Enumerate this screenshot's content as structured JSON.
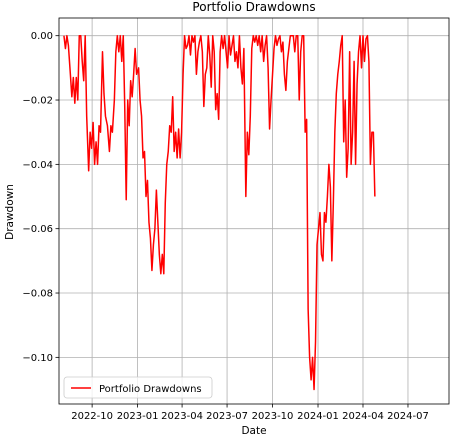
{
  "chart_data": {
    "type": "line",
    "title": "Portfolio Drawdowns",
    "xlabel": "Date",
    "ylabel": "Drawdown",
    "x_tick_labels": [
      "2022-10",
      "2023-01",
      "2023-04",
      "2023-07",
      "2023-10",
      "2024-01",
      "2024-04",
      "2024-07"
    ],
    "x_ticks": [
      "2022-10-01",
      "2023-01-01",
      "2023-04-01",
      "2023-07-01",
      "2023-10-01",
      "2024-01-01",
      "2024-04-01",
      "2024-07-01"
    ],
    "xlim": [
      "2022-07-26",
      "2024-09-22"
    ],
    "y_tick_labels": [
      "0.00",
      "−0.02",
      "−0.04",
      "−0.06",
      "−0.08",
      "−0.10"
    ],
    "y_ticks": [
      0,
      -0.02,
      -0.04,
      -0.06,
      -0.08,
      -0.1
    ],
    "ylim": [
      -0.1145,
      0.0055
    ],
    "grid": true,
    "legend": {
      "position": "lower-left",
      "entries": [
        "Portfolio Drawdowns"
      ]
    },
    "series": [
      {
        "name": "Portfolio Drawdowns",
        "color": "#ff0000",
        "points": [
          [
            "2022-08-05",
            0.0
          ],
          [
            "2022-08-08",
            -0.004
          ],
          [
            "2022-08-11",
            0.0
          ],
          [
            "2022-08-14",
            -0.003
          ],
          [
            "2022-08-18",
            -0.012
          ],
          [
            "2022-08-21",
            -0.019
          ],
          [
            "2022-08-24",
            -0.013
          ],
          [
            "2022-08-27",
            -0.021
          ],
          [
            "2022-08-30",
            -0.013
          ],
          [
            "2022-09-02",
            -0.02
          ],
          [
            "2022-09-05",
            0.0
          ],
          [
            "2022-09-08",
            0.0
          ],
          [
            "2022-09-11",
            -0.008
          ],
          [
            "2022-09-14",
            -0.014
          ],
          [
            "2022-09-17",
            0.0
          ],
          [
            "2022-09-20",
            -0.025
          ],
          [
            "2022-09-24",
            -0.042
          ],
          [
            "2022-09-27",
            -0.03
          ],
          [
            "2022-09-30",
            -0.035
          ],
          [
            "2022-10-03",
            -0.027
          ],
          [
            "2022-10-06",
            -0.04
          ],
          [
            "2022-10-09",
            -0.033
          ],
          [
            "2022-10-12",
            -0.04
          ],
          [
            "2022-10-15",
            -0.028
          ],
          [
            "2022-10-18",
            -0.03
          ],
          [
            "2022-10-22",
            -0.005
          ],
          [
            "2022-10-25",
            -0.018
          ],
          [
            "2022-10-28",
            -0.025
          ],
          [
            "2022-11-01",
            -0.028
          ],
          [
            "2022-11-05",
            -0.036
          ],
          [
            "2022-11-08",
            -0.028
          ],
          [
            "2022-11-11",
            -0.03
          ],
          [
            "2022-11-15",
            -0.02
          ],
          [
            "2022-11-18",
            -0.005
          ],
          [
            "2022-11-21",
            0.0
          ],
          [
            "2022-11-24",
            -0.005
          ],
          [
            "2022-11-27",
            0.0
          ],
          [
            "2022-11-30",
            -0.008
          ],
          [
            "2022-12-03",
            0.0
          ],
          [
            "2022-12-06",
            -0.022
          ],
          [
            "2022-12-09",
            -0.051
          ],
          [
            "2022-12-12",
            -0.02
          ],
          [
            "2022-12-15",
            -0.028
          ],
          [
            "2022-12-18",
            -0.014
          ],
          [
            "2022-12-21",
            -0.019
          ],
          [
            "2022-12-24",
            -0.012
          ],
          [
            "2022-12-27",
            -0.004
          ],
          [
            "2022-12-30",
            -0.012
          ],
          [
            "2023-01-03",
            -0.01
          ],
          [
            "2023-01-06",
            -0.02
          ],
          [
            "2023-01-09",
            -0.025
          ],
          [
            "2023-01-12",
            -0.038
          ],
          [
            "2023-01-15",
            -0.036
          ],
          [
            "2023-01-18",
            -0.05
          ],
          [
            "2023-01-21",
            -0.045
          ],
          [
            "2023-01-24",
            -0.058
          ],
          [
            "2023-01-27",
            -0.063
          ],
          [
            "2023-01-30",
            -0.073
          ],
          [
            "2023-02-02",
            -0.065
          ],
          [
            "2023-02-05",
            -0.06
          ],
          [
            "2023-02-08",
            -0.048
          ],
          [
            "2023-02-11",
            -0.058
          ],
          [
            "2023-02-14",
            -0.068
          ],
          [
            "2023-02-17",
            -0.074
          ],
          [
            "2023-02-20",
            -0.068
          ],
          [
            "2023-02-23",
            -0.074
          ],
          [
            "2023-02-26",
            -0.052
          ],
          [
            "2023-03-01",
            -0.04
          ],
          [
            "2023-03-04",
            -0.036
          ],
          [
            "2023-03-07",
            -0.028
          ],
          [
            "2023-03-10",
            -0.03
          ],
          [
            "2023-03-13",
            -0.019
          ],
          [
            "2023-03-16",
            -0.036
          ],
          [
            "2023-03-19",
            -0.03
          ],
          [
            "2023-03-22",
            -0.038
          ],
          [
            "2023-03-25",
            -0.029
          ],
          [
            "2023-03-28",
            -0.038
          ],
          [
            "2023-03-31",
            -0.03
          ],
          [
            "2023-04-03",
            -0.012
          ],
          [
            "2023-04-06",
            0.0
          ],
          [
            "2023-04-09",
            -0.004
          ],
          [
            "2023-04-12",
            -0.003
          ],
          [
            "2023-04-15",
            0.0
          ],
          [
            "2023-04-18",
            -0.006
          ],
          [
            "2023-04-21",
            0.0
          ],
          [
            "2023-04-24",
            -0.002
          ],
          [
            "2023-04-27",
            0.0
          ],
          [
            "2023-04-30",
            -0.012
          ],
          [
            "2023-05-03",
            -0.005
          ],
          [
            "2023-05-06",
            -0.002
          ],
          [
            "2023-05-09",
            0.0
          ],
          [
            "2023-05-12",
            -0.005
          ],
          [
            "2023-05-15",
            -0.022
          ],
          [
            "2023-05-18",
            -0.012
          ],
          [
            "2023-05-21",
            -0.01
          ],
          [
            "2023-05-24",
            0.0
          ],
          [
            "2023-05-27",
            -0.006
          ],
          [
            "2023-05-30",
            -0.016
          ],
          [
            "2023-06-02",
            0.0
          ],
          [
            "2023-06-05",
            -0.005
          ],
          [
            "2023-06-08",
            -0.023
          ],
          [
            "2023-06-11",
            -0.018
          ],
          [
            "2023-06-14",
            -0.026
          ],
          [
            "2023-06-17",
            -0.005
          ],
          [
            "2023-06-20",
            0.0
          ],
          [
            "2023-06-23",
            -0.004
          ],
          [
            "2023-06-26",
            0.0
          ],
          [
            "2023-06-29",
            -0.005
          ],
          [
            "2023-07-02",
            -0.01
          ],
          [
            "2023-07-05",
            0.0
          ],
          [
            "2023-07-08",
            -0.006
          ],
          [
            "2023-07-11",
            -0.003
          ],
          [
            "2023-07-14",
            0.0
          ],
          [
            "2023-07-17",
            -0.008
          ],
          [
            "2023-07-20",
            -0.005
          ],
          [
            "2023-07-23",
            -0.01
          ],
          [
            "2023-07-26",
            0.0
          ],
          [
            "2023-07-29",
            -0.01
          ],
          [
            "2023-08-01",
            -0.015
          ],
          [
            "2023-08-04",
            -0.004
          ],
          [
            "2023-08-08",
            -0.05
          ],
          [
            "2023-08-11",
            -0.03
          ],
          [
            "2023-08-14",
            -0.037
          ],
          [
            "2023-08-17",
            -0.025
          ],
          [
            "2023-08-20",
            -0.004
          ],
          [
            "2023-08-23",
            0.0
          ],
          [
            "2023-08-26",
            -0.002
          ],
          [
            "2023-08-29",
            0.0
          ],
          [
            "2023-09-01",
            -0.003
          ],
          [
            "2023-09-04",
            0.0
          ],
          [
            "2023-09-07",
            -0.005
          ],
          [
            "2023-09-10",
            0.0
          ],
          [
            "2023-09-13",
            -0.008
          ],
          [
            "2023-09-16",
            -0.003
          ],
          [
            "2023-09-19",
            0.0
          ],
          [
            "2023-09-22",
            -0.01
          ],
          [
            "2023-09-25",
            -0.029
          ],
          [
            "2023-09-28",
            -0.02
          ],
          [
            "2023-10-01",
            -0.012
          ],
          [
            "2023-10-04",
            -0.004
          ],
          [
            "2023-10-07",
            0.0
          ],
          [
            "2023-10-10",
            -0.003
          ],
          [
            "2023-10-13",
            -0.001
          ],
          [
            "2023-10-16",
            0.0
          ],
          [
            "2023-10-19",
            -0.005
          ],
          [
            "2023-10-22",
            -0.002
          ],
          [
            "2023-10-25",
            -0.012
          ],
          [
            "2023-10-28",
            -0.017
          ],
          [
            "2023-10-31",
            -0.008
          ],
          [
            "2023-11-03",
            -0.004
          ],
          [
            "2023-11-06",
            0.0
          ],
          [
            "2023-11-09",
            0.0
          ],
          [
            "2023-11-12",
            0.0
          ],
          [
            "2023-11-15",
            -0.005
          ],
          [
            "2023-11-18",
            0.0
          ],
          [
            "2023-11-21",
            0.0
          ],
          [
            "2023-11-24",
            -0.02
          ],
          [
            "2023-11-27",
            -0.005
          ],
          [
            "2023-11-30",
            0.0
          ],
          [
            "2023-12-03",
            0.0
          ],
          [
            "2023-12-06",
            -0.03
          ],
          [
            "2023-12-09",
            -0.026
          ],
          [
            "2023-12-12",
            -0.085
          ],
          [
            "2023-12-15",
            -0.1
          ],
          [
            "2023-12-18",
            -0.107
          ],
          [
            "2023-12-21",
            -0.1
          ],
          [
            "2023-12-24",
            -0.11
          ],
          [
            "2023-12-27",
            -0.095
          ],
          [
            "2023-12-30",
            -0.065
          ],
          [
            "2024-01-02",
            -0.06
          ],
          [
            "2024-01-05",
            -0.055
          ],
          [
            "2024-01-08",
            -0.068
          ],
          [
            "2024-01-11",
            -0.07
          ],
          [
            "2024-01-14",
            -0.055
          ],
          [
            "2024-01-17",
            -0.058
          ],
          [
            "2024-01-20",
            -0.05
          ],
          [
            "2024-01-23",
            -0.04
          ],
          [
            "2024-01-26",
            -0.047
          ],
          [
            "2024-01-29",
            -0.07
          ],
          [
            "2024-02-01",
            -0.052
          ],
          [
            "2024-02-04",
            -0.03
          ],
          [
            "2024-02-07",
            -0.018
          ],
          [
            "2024-02-10",
            -0.012
          ],
          [
            "2024-02-13",
            -0.008
          ],
          [
            "2024-02-16",
            -0.003
          ],
          [
            "2024-02-19",
            0.0
          ],
          [
            "2024-02-22",
            -0.033
          ],
          [
            "2024-02-25",
            -0.02
          ],
          [
            "2024-02-28",
            -0.044
          ],
          [
            "2024-03-02",
            -0.035
          ],
          [
            "2024-03-05",
            -0.005
          ],
          [
            "2024-03-08",
            -0.04
          ],
          [
            "2024-03-11",
            -0.03
          ],
          [
            "2024-03-14",
            -0.008
          ],
          [
            "2024-03-17",
            -0.04
          ],
          [
            "2024-03-20",
            -0.015
          ],
          [
            "2024-03-23",
            -0.005
          ],
          [
            "2024-03-26",
            0.0
          ],
          [
            "2024-03-29",
            -0.01
          ],
          [
            "2024-04-01",
            0.0
          ],
          [
            "2024-04-04",
            -0.008
          ],
          [
            "2024-04-07",
            -0.001
          ],
          [
            "2024-04-10",
            0.0
          ],
          [
            "2024-04-13",
            -0.008
          ],
          [
            "2024-04-16",
            -0.04
          ],
          [
            "2024-04-19",
            -0.03
          ],
          [
            "2024-04-22",
            -0.03
          ],
          [
            "2024-04-25",
            -0.05
          ]
        ]
      }
    ]
  }
}
